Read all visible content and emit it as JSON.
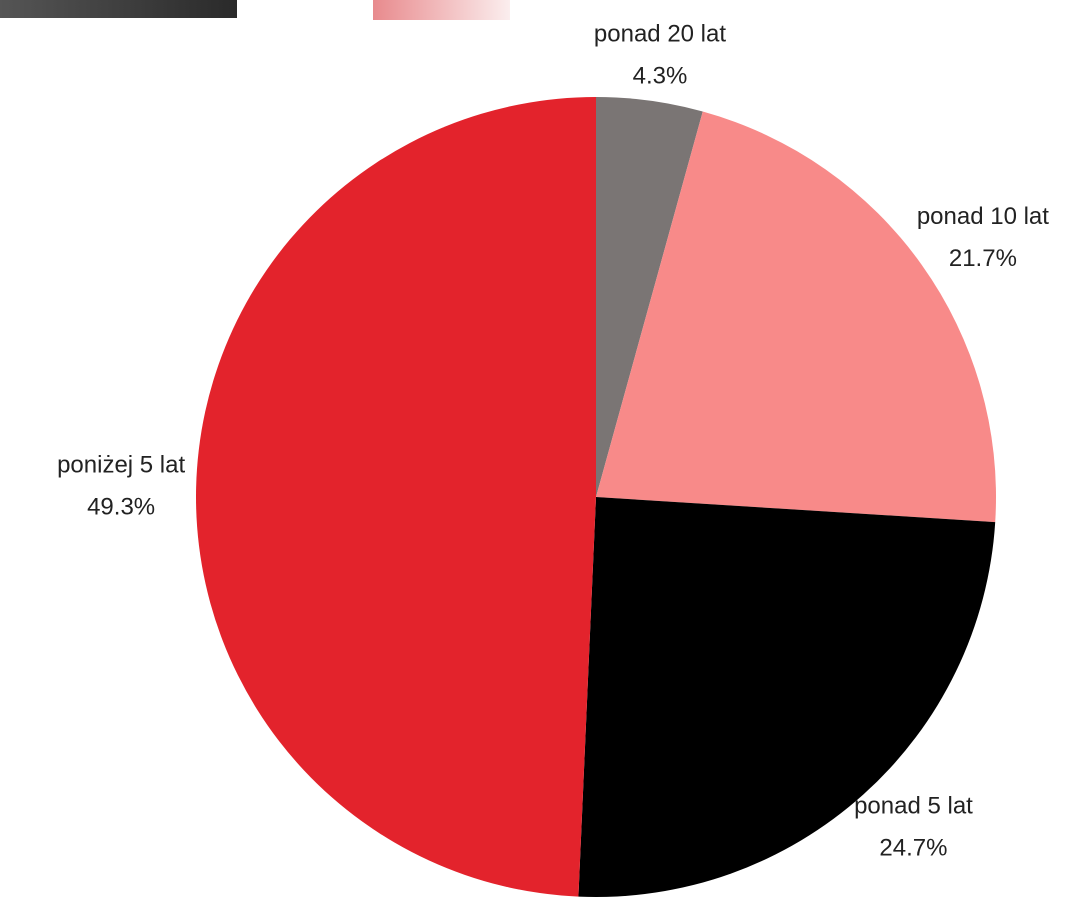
{
  "chart_data": {
    "type": "pie",
    "categories": [
      "ponad 20 lat",
      "ponad 10 lat",
      "ponad 5 lat",
      "poniżej 5 lat"
    ],
    "values": [
      4.3,
      21.7,
      24.7,
      49.3
    ],
    "value_labels": [
      "4.3%",
      "21.7%",
      "24.7%",
      "49.3%"
    ],
    "colors": [
      "#7a7574",
      "#f88a89",
      "#000000",
      "#e3232c"
    ]
  }
}
